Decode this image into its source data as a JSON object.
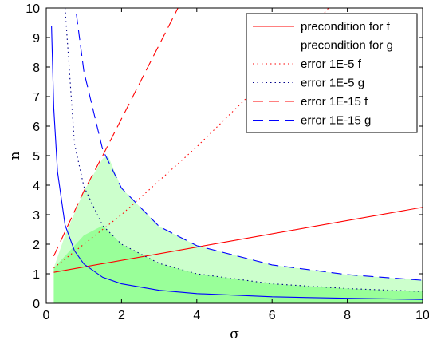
{
  "chart_data": {
    "type": "line",
    "title": "",
    "xlabel": "σ",
    "ylabel": "n",
    "xlim": [
      0,
      10
    ],
    "ylim": [
      0,
      10
    ],
    "xticks": [
      "0",
      "2",
      "4",
      "6",
      "8",
      "10"
    ],
    "yticks": [
      "0",
      "1",
      "2",
      "3",
      "4",
      "5",
      "6",
      "7",
      "8",
      "9",
      "10"
    ],
    "grid": false,
    "legend_position": "top-right",
    "series": [
      {
        "name": "precondition for f",
        "color": "#ff0000",
        "dash": "solid",
        "x": [
          0.2,
          10
        ],
        "y": [
          1.05,
          3.25
        ]
      },
      {
        "name": "precondition for g",
        "color": "#0000ff",
        "dash": "solid",
        "x": [
          0.14,
          0.2,
          0.3,
          0.5,
          0.75,
          1,
          1.5,
          2,
          3,
          4,
          6,
          8,
          10
        ],
        "y": [
          9.4,
          6.6,
          4.45,
          2.65,
          1.78,
          1.33,
          0.88,
          0.66,
          0.44,
          0.33,
          0.22,
          0.17,
          0.13
        ]
      },
      {
        "name": "error 1E-5 f",
        "color": "#ff0000",
        "dash": "dotted",
        "x": [
          0.2,
          2,
          4,
          6,
          7.5
        ],
        "y": [
          1.2,
          3.0,
          5.3,
          7.8,
          10
        ]
      },
      {
        "name": "error 1E-5 g",
        "color": "#00008b",
        "dash": "dotted",
        "x": [
          0.5,
          0.75,
          1,
          1.5,
          2,
          3,
          4,
          6,
          8,
          10
        ],
        "y": [
          10,
          5.4,
          3.95,
          2.63,
          2.0,
          1.35,
          1.0,
          0.66,
          0.5,
          0.4
        ]
      },
      {
        "name": "error 1E-15 f",
        "color": "#ff0000",
        "dash": "dashed",
        "x": [
          0.2,
          1,
          1.5,
          2.5,
          3.5
        ],
        "y": [
          1.6,
          3.8,
          5.0,
          7.5,
          10
        ]
      },
      {
        "name": "error 1E-15 g",
        "color": "#0000ff",
        "dash": "dashed",
        "x": [
          0.8,
          1,
          1.5,
          2,
          3,
          4,
          6,
          8,
          10
        ],
        "y": [
          9.8,
          7.85,
          5.2,
          3.9,
          2.6,
          1.95,
          1.3,
          0.97,
          0.78
        ]
      }
    ],
    "shaded_regions": [
      {
        "description": "light green",
        "color": "#ccffcc",
        "x": [
          0.2,
          0.5,
          1,
          1.5,
          1.64,
          2,
          3,
          4,
          6,
          8,
          10
        ],
        "upper": [
          1.2,
          2.3,
          3.8,
          4.9,
          5.0,
          3.9,
          2.6,
          1.95,
          1.3,
          0.97,
          0.78
        ]
      },
      {
        "description": "darker green",
        "color": "#99ff99",
        "x": [
          0.2,
          0.5,
          1,
          1.5,
          2,
          3,
          4,
          6,
          8,
          10
        ],
        "upper": [
          1.2,
          1.6,
          2.3,
          2.63,
          2.0,
          1.35,
          1.0,
          0.66,
          0.5,
          0.4
        ]
      }
    ]
  }
}
